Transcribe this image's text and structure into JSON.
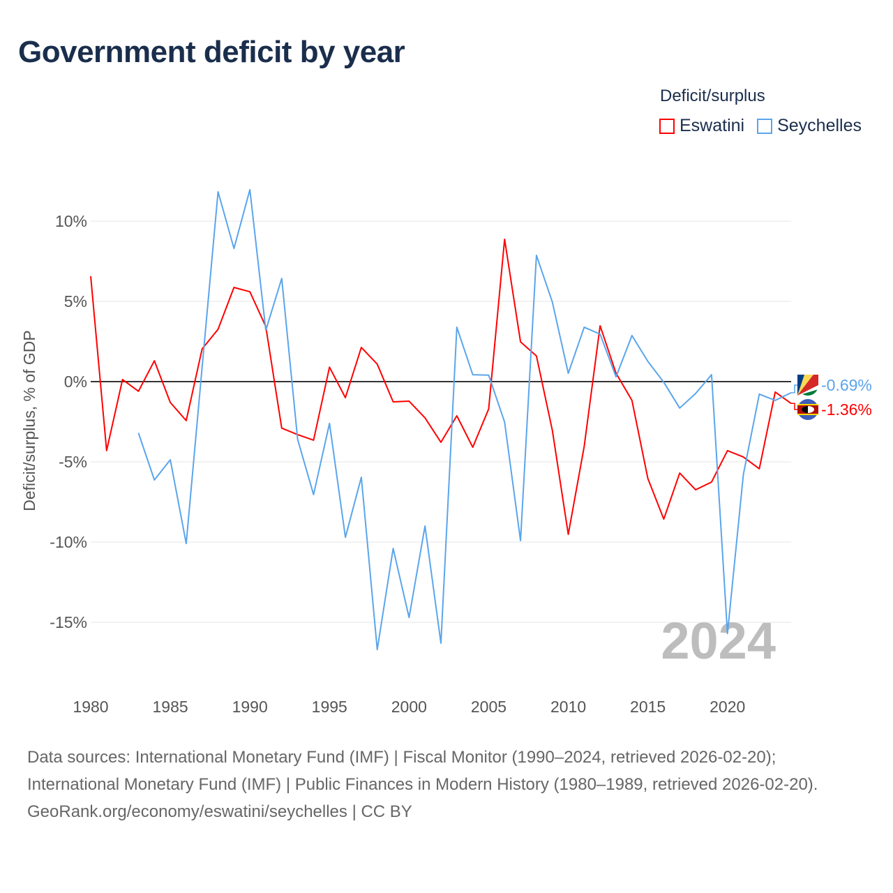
{
  "title": "Government deficit by year",
  "legend": {
    "title": "Deficit/surplus",
    "items": [
      {
        "name": "Eswatini",
        "color": "#ff0000"
      },
      {
        "name": "Seychelles",
        "color": "#5aa5ec"
      }
    ]
  },
  "year_watermark": "2024",
  "footer": {
    "sources": "Data sources: International Monetary Fund (IMF) | Fiscal Monitor (1990–2024, retrieved 2026-02-20); International Monetary Fund (IMF) | Public Finances in Modern History (1980–1989, retrieved 2026-02-20).",
    "credit": "GeoRank.org/economy/eswatini/seychelles | CC BY"
  },
  "chart_data": {
    "type": "line",
    "title": "Government deficit by year",
    "xlabel": "",
    "ylabel": "Deficit/surplus, % of GDP",
    "xlim": [
      1980,
      2024
    ],
    "ylim": [
      -18,
      13
    ],
    "x_ticks": [
      "1980",
      "1985",
      "1990",
      "1995",
      "2000",
      "2005",
      "2010",
      "2015",
      "2020"
    ],
    "y_ticks": [
      {
        "v": 10,
        "label": "10%"
      },
      {
        "v": 5,
        "label": "5%"
      },
      {
        "v": 0,
        "label": "0%"
      },
      {
        "v": -5,
        "label": "-5%"
      },
      {
        "v": -10,
        "label": "-10%"
      },
      {
        "v": -15,
        "label": "-15%"
      }
    ],
    "grid": true,
    "legend_position": "top-right",
    "series": [
      {
        "name": "Eswatini",
        "color": "#ff0000",
        "start_year": 1980,
        "end_label": "-1.36%",
        "values": [
          6.57,
          -4.3,
          0.13,
          -0.6,
          1.3,
          -1.3,
          -2.43,
          2.04,
          3.26,
          5.87,
          5.6,
          3.43,
          -2.9,
          -3.3,
          -3.65,
          0.9,
          -1.0,
          2.13,
          1.09,
          -1.26,
          -1.22,
          -2.26,
          -3.78,
          -2.13,
          -4.09,
          -1.7,
          8.87,
          2.48,
          1.6,
          -3.04,
          -9.52,
          -4.04,
          3.48,
          0.52,
          -1.17,
          -6.04,
          -8.57,
          -5.7,
          -6.74,
          -6.26,
          -4.3,
          -4.7,
          -5.43,
          -0.65,
          -1.36
        ]
      },
      {
        "name": "Seychelles",
        "color": "#5aa5ec",
        "start_year": 1983,
        "end_label": "-0.69%",
        "values": [
          -3.2,
          -6.13,
          -4.87,
          -10.09,
          0.9,
          11.83,
          8.3,
          11.96,
          3.2,
          6.43,
          -3.6,
          -7.04,
          -2.6,
          -9.7,
          -5.96,
          -16.7,
          -10.4,
          -14.7,
          -9.0,
          -16.3,
          3.39,
          0.43,
          0.4,
          -2.52,
          -9.91,
          7.87,
          4.96,
          0.52,
          3.39,
          2.96,
          0.3,
          2.87,
          1.26,
          -0.04,
          -1.65,
          -0.74,
          0.43,
          -15.7,
          -5.78,
          -0.78,
          -1.17,
          -0.69
        ]
      }
    ]
  }
}
